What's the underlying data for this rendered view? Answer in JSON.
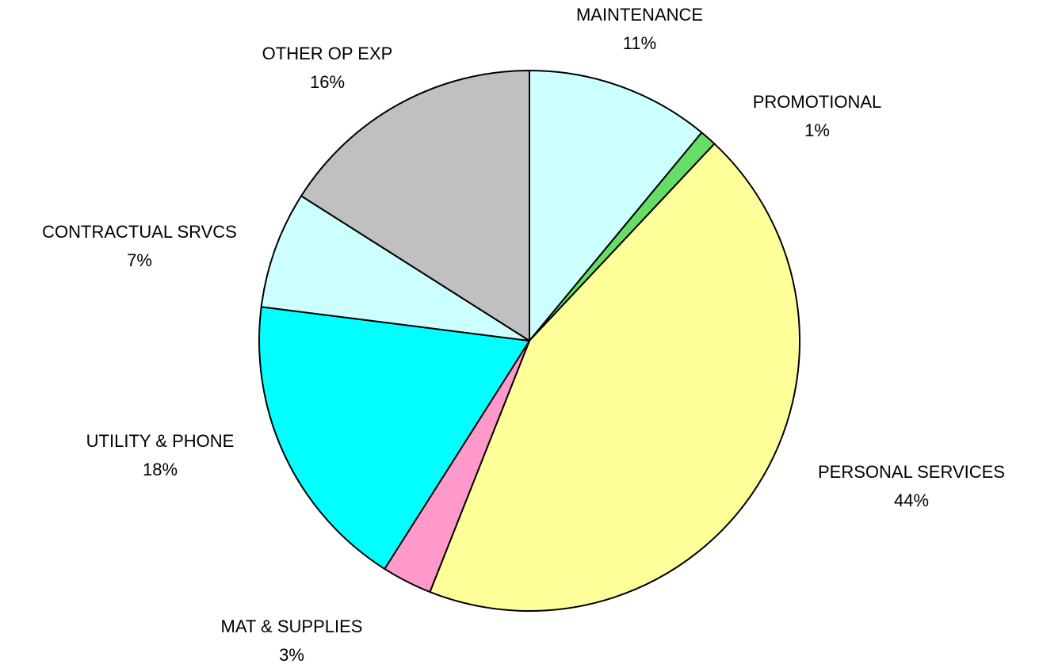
{
  "chart_data": {
    "type": "pie",
    "categories": [
      "MAINTENANCE",
      "PROMOTIONAL",
      "PERSONAL SERVICES",
      "MAT & SUPPLIES",
      "UTILITY & PHONE",
      "CONTRACTUAL SRVCS",
      "OTHER OP EXP"
    ],
    "values": [
      11,
      1,
      44,
      3,
      18,
      7,
      16
    ],
    "value_labels": [
      "11%",
      "1%",
      "44%",
      "3%",
      "18%",
      "7%",
      "16%"
    ],
    "colors": [
      "#ccffff",
      "#66dd66",
      "#ffff99",
      "#ff99cc",
      "#00ffff",
      "#ccffff",
      "#c0c0c0"
    ]
  }
}
